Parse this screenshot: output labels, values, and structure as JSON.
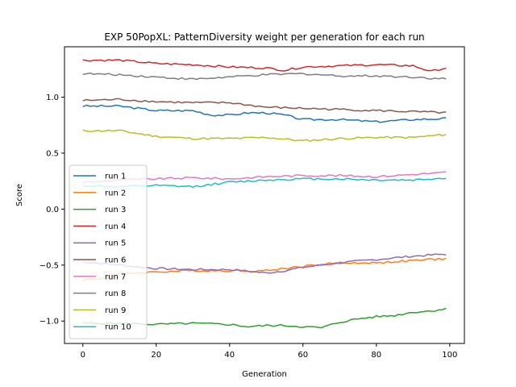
{
  "chart_data": {
    "type": "line",
    "title": "EXP 50PopXL: PatternDiversity weight per generation for each run",
    "xlabel": "Generation",
    "ylabel": "Score",
    "xlim": [
      -5,
      104
    ],
    "ylim": [
      -1.2,
      1.45
    ],
    "xticks": [
      0,
      20,
      40,
      60,
      80,
      100
    ],
    "yticks": [
      -1.0,
      -0.5,
      0.0,
      0.5,
      1.0
    ],
    "xtick_labels": [
      "0",
      "20",
      "40",
      "60",
      "80",
      "100"
    ],
    "ytick_labels": [
      "−1.0",
      "−0.5",
      "0.0",
      "0.5",
      "1.0"
    ],
    "grid": false,
    "legend_position": "center-left",
    "series": [
      {
        "name": "run 1",
        "color": "#1f77b4",
        "keypoints": [
          [
            0,
            0.92
          ],
          [
            10,
            0.92
          ],
          [
            20,
            0.88
          ],
          [
            30,
            0.88
          ],
          [
            35,
            0.84
          ],
          [
            40,
            0.84
          ],
          [
            45,
            0.86
          ],
          [
            50,
            0.86
          ],
          [
            55,
            0.84
          ],
          [
            60,
            0.8
          ],
          [
            70,
            0.8
          ],
          [
            80,
            0.78
          ],
          [
            90,
            0.8
          ],
          [
            100,
            0.81
          ]
        ]
      },
      {
        "name": "run 2",
        "color": "#ff7f0e",
        "keypoints": [
          [
            0,
            -0.63
          ],
          [
            5,
            -0.62
          ],
          [
            10,
            -0.58
          ],
          [
            20,
            -0.56
          ],
          [
            30,
            -0.55
          ],
          [
            40,
            -0.55
          ],
          [
            50,
            -0.55
          ],
          [
            55,
            -0.53
          ],
          [
            60,
            -0.51
          ],
          [
            70,
            -0.48
          ],
          [
            80,
            -0.48
          ],
          [
            90,
            -0.46
          ],
          [
            100,
            -0.44
          ]
        ]
      },
      {
        "name": "run 3",
        "color": "#2ca02c",
        "keypoints": [
          [
            0,
            -1.02
          ],
          [
            10,
            -1.02
          ],
          [
            20,
            -1.03
          ],
          [
            30,
            -1.02
          ],
          [
            40,
            -1.03
          ],
          [
            45,
            -1.05
          ],
          [
            50,
            -1.04
          ],
          [
            55,
            -1.04
          ],
          [
            60,
            -1.05
          ],
          [
            65,
            -1.06
          ],
          [
            70,
            -1.01
          ],
          [
            75,
            -0.98
          ],
          [
            80,
            -0.96
          ],
          [
            85,
            -0.95
          ],
          [
            90,
            -0.92
          ],
          [
            95,
            -0.91
          ],
          [
            100,
            -0.88
          ]
        ]
      },
      {
        "name": "run 4",
        "color": "#d62728",
        "keypoints": [
          [
            0,
            1.33
          ],
          [
            10,
            1.33
          ],
          [
            20,
            1.3
          ],
          [
            30,
            1.29
          ],
          [
            40,
            1.27
          ],
          [
            50,
            1.26
          ],
          [
            55,
            1.24
          ],
          [
            60,
            1.27
          ],
          [
            70,
            1.28
          ],
          [
            80,
            1.29
          ],
          [
            90,
            1.28
          ],
          [
            95,
            1.23
          ],
          [
            100,
            1.27
          ]
        ]
      },
      {
        "name": "run 5",
        "color": "#9467bd",
        "keypoints": [
          [
            0,
            -0.47
          ],
          [
            10,
            -0.5
          ],
          [
            20,
            -0.53
          ],
          [
            30,
            -0.54
          ],
          [
            40,
            -0.54
          ],
          [
            50,
            -0.57
          ],
          [
            55,
            -0.55
          ],
          [
            60,
            -0.52
          ],
          [
            70,
            -0.48
          ],
          [
            80,
            -0.45
          ],
          [
            90,
            -0.42
          ],
          [
            100,
            -0.4
          ]
        ]
      },
      {
        "name": "run 6",
        "color": "#8c564b",
        "keypoints": [
          [
            0,
            0.97
          ],
          [
            10,
            0.98
          ],
          [
            20,
            0.96
          ],
          [
            30,
            0.95
          ],
          [
            40,
            0.95
          ],
          [
            50,
            0.91
          ],
          [
            60,
            0.9
          ],
          [
            70,
            0.89
          ],
          [
            80,
            0.88
          ],
          [
            90,
            0.87
          ],
          [
            100,
            0.86
          ]
        ]
      },
      {
        "name": "run 7",
        "color": "#e377c2",
        "keypoints": [
          [
            0,
            0.24
          ],
          [
            10,
            0.26
          ],
          [
            20,
            0.27
          ],
          [
            30,
            0.28
          ],
          [
            40,
            0.27
          ],
          [
            50,
            0.29
          ],
          [
            60,
            0.3
          ],
          [
            70,
            0.3
          ],
          [
            80,
            0.29
          ],
          [
            90,
            0.31
          ],
          [
            100,
            0.33
          ]
        ]
      },
      {
        "name": "run 8",
        "color": "#7f7f7f",
        "keypoints": [
          [
            0,
            1.21
          ],
          [
            10,
            1.2
          ],
          [
            20,
            1.18
          ],
          [
            30,
            1.16
          ],
          [
            40,
            1.18
          ],
          [
            50,
            1.2
          ],
          [
            60,
            1.21
          ],
          [
            70,
            1.19
          ],
          [
            80,
            1.19
          ],
          [
            90,
            1.18
          ],
          [
            100,
            1.16
          ]
        ]
      },
      {
        "name": "run 9",
        "color": "#bcbd22",
        "keypoints": [
          [
            0,
            0.7
          ],
          [
            10,
            0.7
          ],
          [
            20,
            0.65
          ],
          [
            30,
            0.63
          ],
          [
            40,
            0.63
          ],
          [
            50,
            0.64
          ],
          [
            60,
            0.61
          ],
          [
            70,
            0.63
          ],
          [
            80,
            0.64
          ],
          [
            90,
            0.64
          ],
          [
            100,
            0.67
          ]
        ]
      },
      {
        "name": "run 10",
        "color": "#17becf",
        "keypoints": [
          [
            0,
            0.21
          ],
          [
            10,
            0.2
          ],
          [
            20,
            0.21
          ],
          [
            30,
            0.2
          ],
          [
            40,
            0.24
          ],
          [
            50,
            0.26
          ],
          [
            60,
            0.27
          ],
          [
            70,
            0.27
          ],
          [
            80,
            0.26
          ],
          [
            90,
            0.26
          ],
          [
            100,
            0.28
          ]
        ]
      }
    ]
  }
}
